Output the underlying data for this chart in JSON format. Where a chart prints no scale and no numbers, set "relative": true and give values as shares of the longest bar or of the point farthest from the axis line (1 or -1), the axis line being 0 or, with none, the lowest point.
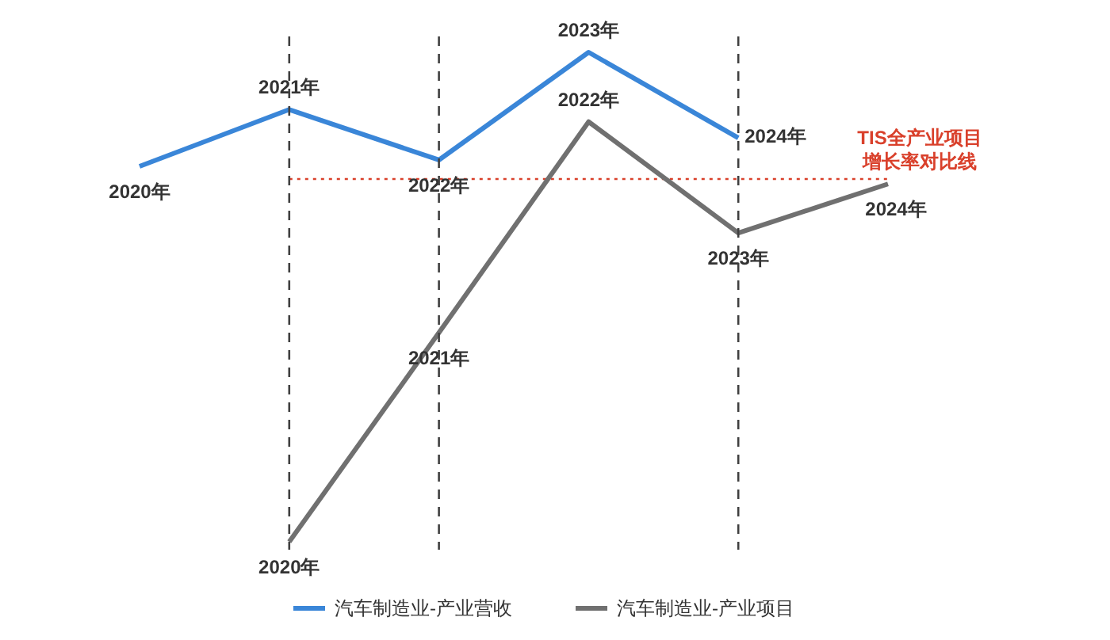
{
  "chart_data": {
    "type": "line",
    "relative": true,
    "categories": [
      null,
      null,
      null,
      null,
      null,
      null
    ],
    "series": [
      {
        "name": "汽车制造业-产业营收",
        "color": "#3a86d8",
        "values": [
          0.767,
          0.883,
          0.78,
          1.0,
          0.825,
          null
        ]
      },
      {
        "name": "汽车制造业-产业项目",
        "color": "#707070",
        "values": [
          null,
          0.0,
          0.427,
          0.858,
          0.631,
          0.731
        ]
      }
    ],
    "annotations": [
      {
        "text": "2020年",
        "y": 0.767
      },
      {
        "text": "2021年",
        "y": 0.883
      },
      {
        "text": "2022年",
        "y": 0.78
      },
      {
        "text": "2023年",
        "y": 1.0
      },
      "2024年",
      {
        "text": "2020年",
        "y": 0.0
      },
      {
        "text": "2021年",
        "y": 0.427
      },
      {
        "text": "2022年",
        "y": 0.858
      },
      {
        "text": "2023年",
        "y": 0.631
      },
      {
        "text": "2024年",
        "y": 0.731
      }
    ],
    "ref_lines": [
      {
        "axis": "y",
        "value": 0.741,
        "label": "TIS全产业项目增长率对比线",
        "color": "#d9402b",
        "line_style": "dotted"
      }
    ],
    "legend": "bottom",
    "grid": "x",
    "line_style": "solid"
  }
}
